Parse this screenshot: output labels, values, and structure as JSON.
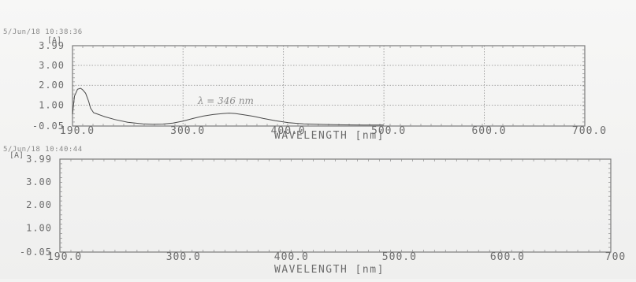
{
  "chart_data": [
    {
      "type": "line",
      "timestamp": "5/Jun/18 10:38:36",
      "unit": "[A]",
      "xlabel": "WAVELENGTH [nm]",
      "xlim": [
        190,
        700
      ],
      "ylim": [
        -0.05,
        3.99
      ],
      "x_ticks": [
        "190.0",
        "300.0",
        "400.0",
        "500.0",
        "600.0",
        "700.0"
      ],
      "x_tick_values": [
        190,
        300,
        400,
        500,
        600,
        700
      ],
      "y_ticks": [
        "3.99",
        "3.00",
        "2.00",
        "1.00",
        "-0.05"
      ],
      "y_tick_values": [
        3.99,
        3.0,
        2.0,
        1.0,
        -0.05
      ],
      "grid": true,
      "annotation": "λ = 346 nm",
      "annotation_x": 346,
      "annotation_y": 1.05,
      "series": [
        {
          "x": [
            190,
            192,
            195,
            198,
            200,
            203,
            206,
            208,
            211,
            215,
            222,
            232,
            245,
            260,
            270,
            280,
            290,
            300,
            310,
            320,
            330,
            340,
            346,
            352,
            360,
            370,
            380,
            392,
            405,
            420,
            440,
            460,
            480,
            500
          ],
          "y": [
            0.55,
            1.45,
            1.8,
            1.85,
            1.78,
            1.6,
            1.2,
            0.85,
            0.62,
            0.55,
            0.42,
            0.28,
            0.14,
            0.06,
            0.04,
            0.05,
            0.1,
            0.2,
            0.33,
            0.45,
            0.53,
            0.58,
            0.6,
            0.58,
            0.52,
            0.44,
            0.33,
            0.22,
            0.12,
            0.06,
            0.03,
            0.01,
            0.0,
            0.0
          ]
        }
      ]
    },
    {
      "type": "line",
      "timestamp": "5/Jun/18 10:40:44",
      "unit": "[A]",
      "xlabel": "WAVELENGTH [nm]",
      "xlim": [
        190,
        700
      ],
      "ylim": [
        -0.05,
        3.99
      ],
      "x_ticks": [
        "190.0",
        "300.0",
        "400.0",
        "500.0",
        "600.0",
        "700"
      ],
      "x_tick_values": [
        190,
        300,
        400,
        500,
        600,
        700
      ],
      "y_ticks": [
        "3.99",
        "3.00",
        "2.00",
        "1.00",
        "-0.05"
      ],
      "y_tick_values": [
        3.99,
        3.0,
        2.0,
        1.0,
        -0.05
      ],
      "grid": false,
      "series": []
    }
  ]
}
